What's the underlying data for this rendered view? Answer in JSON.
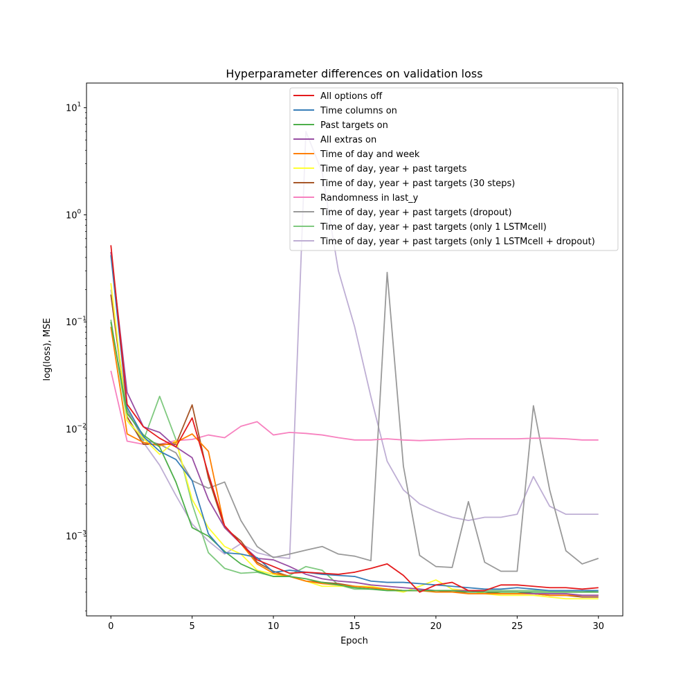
{
  "chart_data": {
    "type": "line",
    "title": "Hyperparameter differences on validation loss",
    "xlabel": "Epoch",
    "ylabel": "log(loss), MSE",
    "yscale": "log",
    "xlim": [
      -1.5,
      31.5
    ],
    "ylim": [
      0.00018,
      17
    ],
    "xticks": [
      0,
      5,
      10,
      15,
      20,
      25,
      30
    ],
    "yticks": [
      {
        "value": 0.001,
        "base": "10",
        "exp": "−3"
      },
      {
        "value": 0.01,
        "base": "10",
        "exp": "−2"
      },
      {
        "value": 0.1,
        "base": "10",
        "exp": "−1"
      },
      {
        "value": 1,
        "base": "10",
        "exp": "0"
      },
      {
        "value": 10,
        "base": "10",
        "exp": "1"
      }
    ],
    "grid": false,
    "legend_position": "upper-right",
    "x": [
      0,
      1,
      2,
      3,
      4,
      5,
      6,
      7,
      8,
      9,
      10,
      11,
      12,
      13,
      14,
      15,
      16,
      17,
      18,
      19,
      20,
      21,
      22,
      23,
      24,
      25,
      26,
      27,
      28,
      29,
      30
    ],
    "series": [
      {
        "name": "All options off",
        "color": "#e41a1c",
        "values": [
          0.52,
          0.017,
          0.0105,
          0.0082,
          0.0068,
          0.0127,
          0.0038,
          0.00125,
          0.00085,
          0.0006,
          0.00052,
          0.00045,
          0.00046,
          0.00045,
          0.00044,
          0.00046,
          0.0005,
          0.00055,
          0.00043,
          0.0003,
          0.00035,
          0.00037,
          0.00031,
          0.00031,
          0.00035,
          0.00035,
          0.00034,
          0.00033,
          0.00033,
          0.00032,
          0.00033
        ]
      },
      {
        "name": "Time columns on",
        "color": "#377eb8",
        "values": [
          0.42,
          0.016,
          0.0085,
          0.0062,
          0.0052,
          0.0033,
          0.00105,
          0.0007,
          0.00068,
          0.00063,
          0.00046,
          0.00048,
          0.00046,
          0.00044,
          0.00043,
          0.00042,
          0.00038,
          0.00037,
          0.00037,
          0.00036,
          0.00035,
          0.00034,
          0.00033,
          0.00032,
          0.00032,
          0.00033,
          0.00032,
          0.00031,
          0.00031,
          0.00031,
          0.00031
        ]
      },
      {
        "name": "Past targets on",
        "color": "#4daf4a",
        "values": [
          0.1,
          0.014,
          0.0088,
          0.0068,
          0.0032,
          0.0012,
          0.001,
          0.00072,
          0.00055,
          0.00047,
          0.00042,
          0.00042,
          0.0004,
          0.00037,
          0.00035,
          0.00033,
          0.00032,
          0.00031,
          0.00031,
          0.00031,
          0.00031,
          0.00031,
          0.0003,
          0.0003,
          0.0003,
          0.0003,
          0.0003,
          0.0003,
          0.0003,
          0.0003,
          0.0003
        ]
      },
      {
        "name": "All extras on",
        "color": "#984ea3",
        "values": [
          0.45,
          0.022,
          0.0105,
          0.0093,
          0.0068,
          0.0054,
          0.0022,
          0.0012,
          0.00085,
          0.00062,
          0.0006,
          0.00052,
          0.00044,
          0.0004,
          0.00038,
          0.00037,
          0.00035,
          0.00034,
          0.00033,
          0.00032,
          0.00031,
          0.00031,
          0.00031,
          0.0003,
          0.0003,
          0.0003,
          0.00029,
          0.00029,
          0.00029,
          0.00028,
          0.00028
        ]
      },
      {
        "name": "Time of day and week",
        "color": "#ff7f00",
        "values": [
          0.09,
          0.009,
          0.0075,
          0.007,
          0.0075,
          0.009,
          0.0062,
          0.0012,
          0.00085,
          0.00055,
          0.00045,
          0.00042,
          0.00038,
          0.00036,
          0.00035,
          0.00034,
          0.00033,
          0.00032,
          0.00031,
          0.00031,
          0.0003,
          0.0003,
          0.00029,
          0.00029,
          0.00029,
          0.00029,
          0.00029,
          0.00028,
          0.00028,
          0.00028,
          0.00028
        ]
      },
      {
        "name": "Time of day, year + past targets",
        "color": "#ffff33",
        "values": [
          0.23,
          0.012,
          0.0082,
          0.0058,
          0.0078,
          0.0022,
          0.0012,
          0.0008,
          0.00068,
          0.00048,
          0.00044,
          0.00042,
          0.00038,
          0.00034,
          0.00034,
          0.00034,
          0.00034,
          0.00032,
          0.0003,
          0.00034,
          0.00039,
          0.00032,
          0.00031,
          0.00029,
          0.00028,
          0.00028,
          0.00028,
          0.00027,
          0.00026,
          0.00026,
          0.00026
        ]
      },
      {
        "name": "Time of day, year + past targets (30 steps)",
        "color": "#a65628",
        "values": [
          0.18,
          0.013,
          0.0072,
          0.0072,
          0.0072,
          0.0168,
          0.0035,
          0.0012,
          0.0009,
          0.00057,
          0.00047,
          0.00042,
          0.00038,
          0.00037,
          0.00036,
          0.00034,
          0.00033,
          0.00032,
          0.00031,
          0.00031,
          0.00031,
          0.0003,
          0.0003,
          0.0003,
          0.00029,
          0.00029,
          0.00029,
          0.00028,
          0.00028,
          0.00027,
          0.00027
        ]
      },
      {
        "name": "Randomness in last_y",
        "color": "#f781bf",
        "values": [
          0.035,
          0.0077,
          0.0072,
          0.0072,
          0.0078,
          0.008,
          0.0088,
          0.0083,
          0.0106,
          0.0117,
          0.0088,
          0.0093,
          0.0091,
          0.0088,
          0.0083,
          0.0079,
          0.0079,
          0.0081,
          0.0079,
          0.0078,
          0.0079,
          0.008,
          0.0081,
          0.0081,
          0.0081,
          0.0081,
          0.0082,
          0.0082,
          0.0081,
          0.0079,
          0.0079
        ]
      },
      {
        "name": "Time of day, year + past targets (dropout)",
        "color": "#999999",
        "values": [
          0.18,
          0.015,
          0.008,
          0.0072,
          0.006,
          0.0033,
          0.0028,
          0.0032,
          0.0014,
          0.0008,
          0.00063,
          0.00068,
          0.00074,
          0.0008,
          0.00068,
          0.00065,
          0.00059,
          0.29,
          0.0045,
          0.00066,
          0.00052,
          0.00051,
          0.0021,
          0.00057,
          0.00047,
          0.00047,
          0.0165,
          0.0027,
          0.00073,
          0.00055,
          0.00062
        ]
      },
      {
        "name": "Time of day, year + past targets (only 1 LSTMcell)",
        "color": "#7fc97f",
        "values": [
          0.105,
          0.012,
          0.0078,
          0.0202,
          0.008,
          0.002,
          0.0007,
          0.0005,
          0.00045,
          0.00046,
          0.00042,
          0.00043,
          0.00052,
          0.00048,
          0.00035,
          0.00032,
          0.00032,
          0.00032,
          0.00031,
          0.00031,
          0.00031,
          0.00031,
          0.00031,
          0.00031,
          0.00031,
          0.00031,
          0.00031,
          0.00031,
          0.00031,
          0.00031,
          0.0003
        ]
      },
      {
        "name": "Time of day, year + past targets (only 1 LSTMcell + dropout)",
        "color": "#beaed4",
        "values": [
          0.2,
          0.013,
          0.0075,
          0.0046,
          0.0024,
          0.0013,
          0.0009,
          0.00068,
          0.00085,
          0.0007,
          0.00064,
          0.00062,
          6.0,
          2.5,
          0.3,
          0.09,
          0.02,
          0.005,
          0.0027,
          0.002,
          0.0017,
          0.0015,
          0.0014,
          0.0015,
          0.0015,
          0.0016,
          0.0036,
          0.0019,
          0.0016,
          0.0016,
          0.0016
        ]
      }
    ]
  }
}
